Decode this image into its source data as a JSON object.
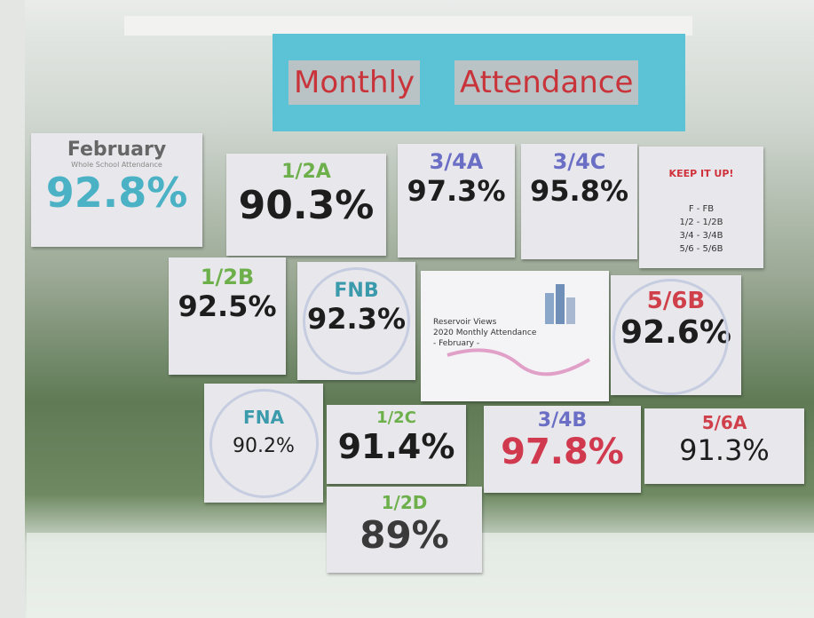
{
  "banner": {
    "words": [
      "Monthly",
      "Attendance"
    ]
  },
  "cards": [
    {
      "label": "February",
      "sublabel": "Whole School Attendance",
      "value": "92.8%"
    },
    {
      "label": "1/2A",
      "value": "90.3%"
    },
    {
      "label": "3/4A",
      "value": "97.3%"
    },
    {
      "label": "3/4C",
      "value": "95.8%"
    },
    {
      "label": "1/2B",
      "value": "92.5%"
    },
    {
      "label": "FNB",
      "value": "92.3%"
    },
    {
      "label": "5/6B",
      "value": "92.6%"
    },
    {
      "label": "FNA",
      "value": "90.2%"
    },
    {
      "label": "1/2C",
      "value": "91.4%"
    },
    {
      "label": "3/4B",
      "value": "97.8%"
    },
    {
      "label": "5/6A",
      "value": "91.3%"
    },
    {
      "label": "1/2D",
      "value": "89%"
    }
  ],
  "notice": {
    "title": "KEEP IT UP!",
    "lines": [
      "F - FB",
      "1/2 - 1/2B",
      "3/4 - 3/4B",
      "5/6 - 5/6B"
    ]
  },
  "poster": {
    "lines": [
      "Reservoir Views",
      "2020 Monthly Attendance",
      "- February -"
    ]
  }
}
